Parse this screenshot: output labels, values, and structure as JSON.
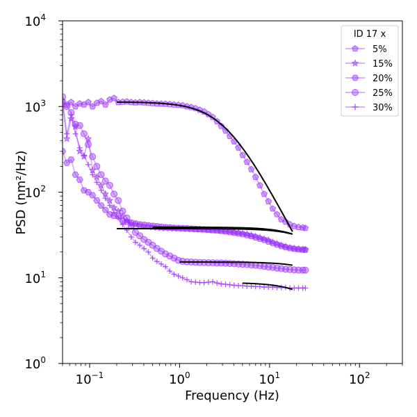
{
  "chart_data": {
    "type": "line",
    "xlabel": "Frequency (Hz)",
    "ylabel": "PSD (nm²/Hz)",
    "xscale": "log",
    "yscale": "log",
    "xlim": [
      0.05,
      300
    ],
    "ylim": [
      1,
      10000
    ],
    "x_ticks": [
      {
        "value": 0.1,
        "base": "10",
        "exp": "−1"
      },
      {
        "value": 1,
        "base": "10",
        "exp": "0"
      },
      {
        "value": 10,
        "base": "10",
        "exp": "1"
      },
      {
        "value": 100,
        "base": "10",
        "exp": "2"
      }
    ],
    "y_ticks": [
      {
        "value": 1,
        "base": "10",
        "exp": "0"
      },
      {
        "value": 10,
        "base": "10",
        "exp": "1"
      },
      {
        "value": 100,
        "base": "10",
        "exp": "2"
      },
      {
        "value": 1000,
        "base": "10",
        "exp": "3"
      },
      {
        "value": 10000,
        "base": "10",
        "exp": "4"
      }
    ],
    "grid": false,
    "legend": {
      "title": "ID 17 x",
      "position": "top-right"
    },
    "series_color": "#9b30ff",
    "fit_color": "#000000",
    "x": [
      0.05,
      0.0558,
      0.0623,
      0.0695,
      0.0776,
      0.0866,
      0.0966,
      0.1078,
      0.1203,
      0.1343,
      0.1499,
      0.1673,
      0.1867,
      0.2084,
      0.2326,
      0.2596,
      0.2897,
      0.3233,
      0.3608,
      0.4027,
      0.4494,
      0.5016,
      0.5598,
      0.6248,
      0.6973,
      0.7782,
      0.8685,
      0.9693,
      1.0818,
      1.2073,
      1.3474,
      1.5038,
      1.6783,
      1.8731,
      2.0905,
      2.3331,
      2.6038,
      2.906,
      3.2433,
      3.6197,
      4.0397,
      4.5086,
      5.0318,
      5.6157,
      6.2675,
      6.9948,
      7.8066,
      8.7126,
      9.7237,
      10.852,
      12.112,
      13.517,
      15.086,
      16.837,
      18.791,
      20.971,
      23.405,
      25.0
    ],
    "series": [
      {
        "name": "5%",
        "marker": "pentagon",
        "values": [
          1150,
          1050,
          1120,
          1000,
          1080,
          1050,
          1120,
          1000,
          1100,
          1150,
          1050,
          1200,
          1250,
          1120,
          1130,
          1140,
          1120,
          1110,
          1120,
          1110,
          1100,
          1090,
          1080,
          1075,
          1070,
          1060,
          1050,
          1040,
          1030,
          1000,
          980,
          950,
          910,
          870,
          810,
          750,
          670,
          590,
          520,
          450,
          390,
          330,
          270,
          225,
          185,
          150,
          120,
          95,
          78,
          64,
          55,
          48,
          45,
          42,
          40,
          39,
          38.5,
          38
        ]
      },
      {
        "name": "15%",
        "marker": "star",
        "values": [
          1050,
          420,
          720,
          580,
          300,
          260,
          420,
          180,
          150,
          120,
          95,
          80,
          66,
          60,
          52,
          46,
          43,
          42,
          41,
          40,
          39.5,
          39,
          38.5,
          38.2,
          38,
          37.8,
          37.6,
          37.5,
          37.4,
          37.2,
          37,
          36.8,
          36.6,
          36.4,
          36.2,
          36,
          35.8,
          35.5,
          35,
          34.5,
          34,
          33.5,
          33,
          32.3,
          31.5,
          30.5,
          29.5,
          28.5,
          27.5,
          26,
          25,
          24,
          23.2,
          22.5,
          22,
          21.7,
          21.5,
          21.4
        ]
      },
      {
        "name": "20%",
        "marker": "hexagon",
        "values": [
          300,
          220,
          240,
          160,
          140,
          105,
          100,
          92,
          80,
          70,
          62,
          55,
          53,
          52,
          46,
          45,
          44,
          43,
          42,
          41.5,
          41,
          40.5,
          40,
          39.5,
          39,
          38.7,
          38.4,
          38.2,
          38,
          37.8,
          37.5,
          37.2,
          37,
          36.7,
          36.4,
          36,
          35.6,
          35.2,
          34.8,
          34.2,
          33.6,
          33,
          32.3,
          31.5,
          30.6,
          29.6,
          28.6,
          27.6,
          26.5,
          25.4,
          24.4,
          23.5,
          22.8,
          22.2,
          21.8,
          21.5,
          21.3,
          21.2
        ]
      },
      {
        "name": "25%",
        "marker": "circle",
        "values": [
          1300,
          1000,
          850,
          620,
          600,
          480,
          360,
          260,
          200,
          160,
          135,
          120,
          95,
          80,
          60,
          50,
          40,
          34,
          31,
          28,
          26,
          24,
          22,
          20.5,
          19,
          18,
          17,
          16,
          15.6,
          15.4,
          15.3,
          15.2,
          15.1,
          15.1,
          15,
          15,
          14.9,
          14.9,
          14.8,
          14.7,
          14.6,
          14.5,
          14.4,
          14.3,
          14.1,
          14,
          13.8,
          13.6,
          13.4,
          13.2,
          13,
          12.8,
          12.6,
          12.5,
          12.4,
          12.3,
          12.3,
          12.3
        ]
      },
      {
        "name": "30%",
        "marker": "plus",
        "values": [
          1200,
          480,
          800,
          480,
          330,
          270,
          210,
          160,
          130,
          105,
          85,
          70,
          58,
          50,
          42,
          36,
          30,
          26,
          24,
          22,
          20,
          17,
          15.5,
          14.5,
          13.5,
          12,
          11,
          10.5,
          10,
          9.5,
          9,
          8.9,
          8.8,
          8.8,
          8.9,
          9,
          8.7,
          8.5,
          8.4,
          8.3,
          8.2,
          8.1,
          8.1,
          8,
          8,
          7.9,
          7.9,
          7.8,
          7.8,
          7.8,
          7.7,
          7.7,
          7.7,
          7.6,
          7.6,
          7.6,
          7.6,
          7.6
        ]
      }
    ],
    "fits": [
      {
        "x_range": [
          0.2,
          18
        ],
        "plateau": 1130,
        "fc": 3.2
      },
      {
        "x_range": [
          0.2,
          18
        ],
        "plateau": 37.5,
        "fc": 45
      },
      {
        "x_range": [
          0.5,
          18
        ],
        "plateau": 39,
        "fc": 40
      },
      {
        "x_range": [
          1.0,
          18
        ],
        "plateau": 15.3,
        "fc": 60
      },
      {
        "x_range": [
          5.0,
          18
        ],
        "plateau": 8.8,
        "fc": 40
      }
    ]
  }
}
